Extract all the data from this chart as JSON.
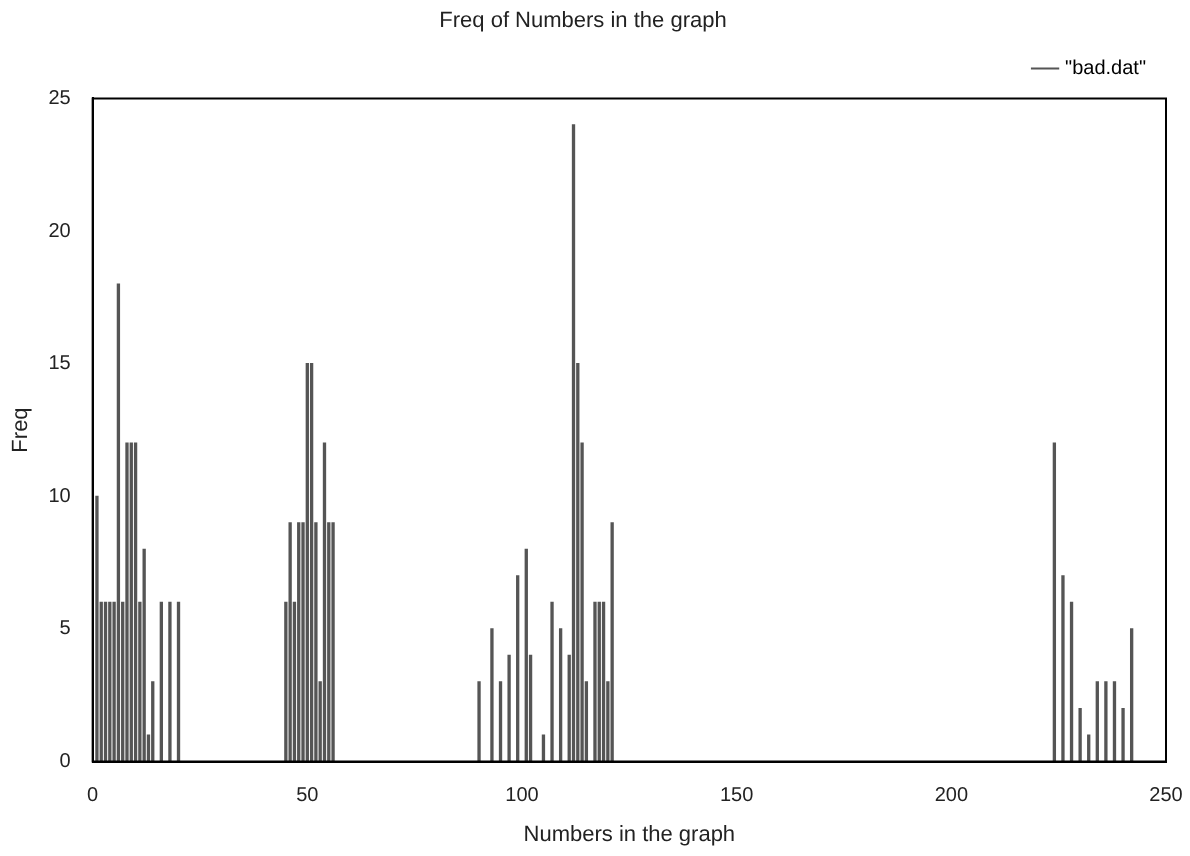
{
  "chart_data": {
    "type": "bar",
    "title": "Freq of Numbers in the graph",
    "xlabel": "Numbers in the graph",
    "ylabel": "Freq",
    "x": [
      1,
      2,
      3,
      4,
      5,
      6,
      7,
      8,
      9,
      10,
      11,
      12,
      13,
      14,
      16,
      18,
      20,
      45,
      46,
      47,
      48,
      49,
      50,
      51,
      52,
      53,
      54,
      55,
      56,
      90,
      93,
      95,
      97,
      99,
      101,
      102,
      105,
      107,
      109,
      111,
      112,
      113,
      114,
      115,
      117,
      118,
      119,
      120,
      121,
      224,
      226,
      228,
      230,
      232,
      234,
      236,
      238,
      240,
      242
    ],
    "series": [
      {
        "name": "\"bad.dat\"",
        "color": "#555555",
        "values": [
          10,
          6,
          6,
          6,
          6,
          18,
          6,
          12,
          12,
          12,
          6,
          8,
          1,
          3,
          6,
          6,
          6,
          6,
          9,
          6,
          9,
          9,
          15,
          15,
          9,
          3,
          12,
          9,
          9,
          3,
          5,
          3,
          4,
          7,
          8,
          4,
          1,
          6,
          5,
          4,
          24,
          15,
          12,
          3,
          6,
          6,
          6,
          3,
          9,
          12,
          7,
          6,
          2,
          1,
          3,
          3,
          3,
          2,
          5
        ]
      }
    ],
    "xlim": [
      0,
      250
    ],
    "xticks": [
      0,
      50,
      100,
      150,
      200,
      250
    ],
    "ylim": [
      0,
      25
    ],
    "yticks": [
      0,
      5,
      10,
      15,
      20,
      25
    ],
    "grid": false,
    "legend": "top right"
  }
}
